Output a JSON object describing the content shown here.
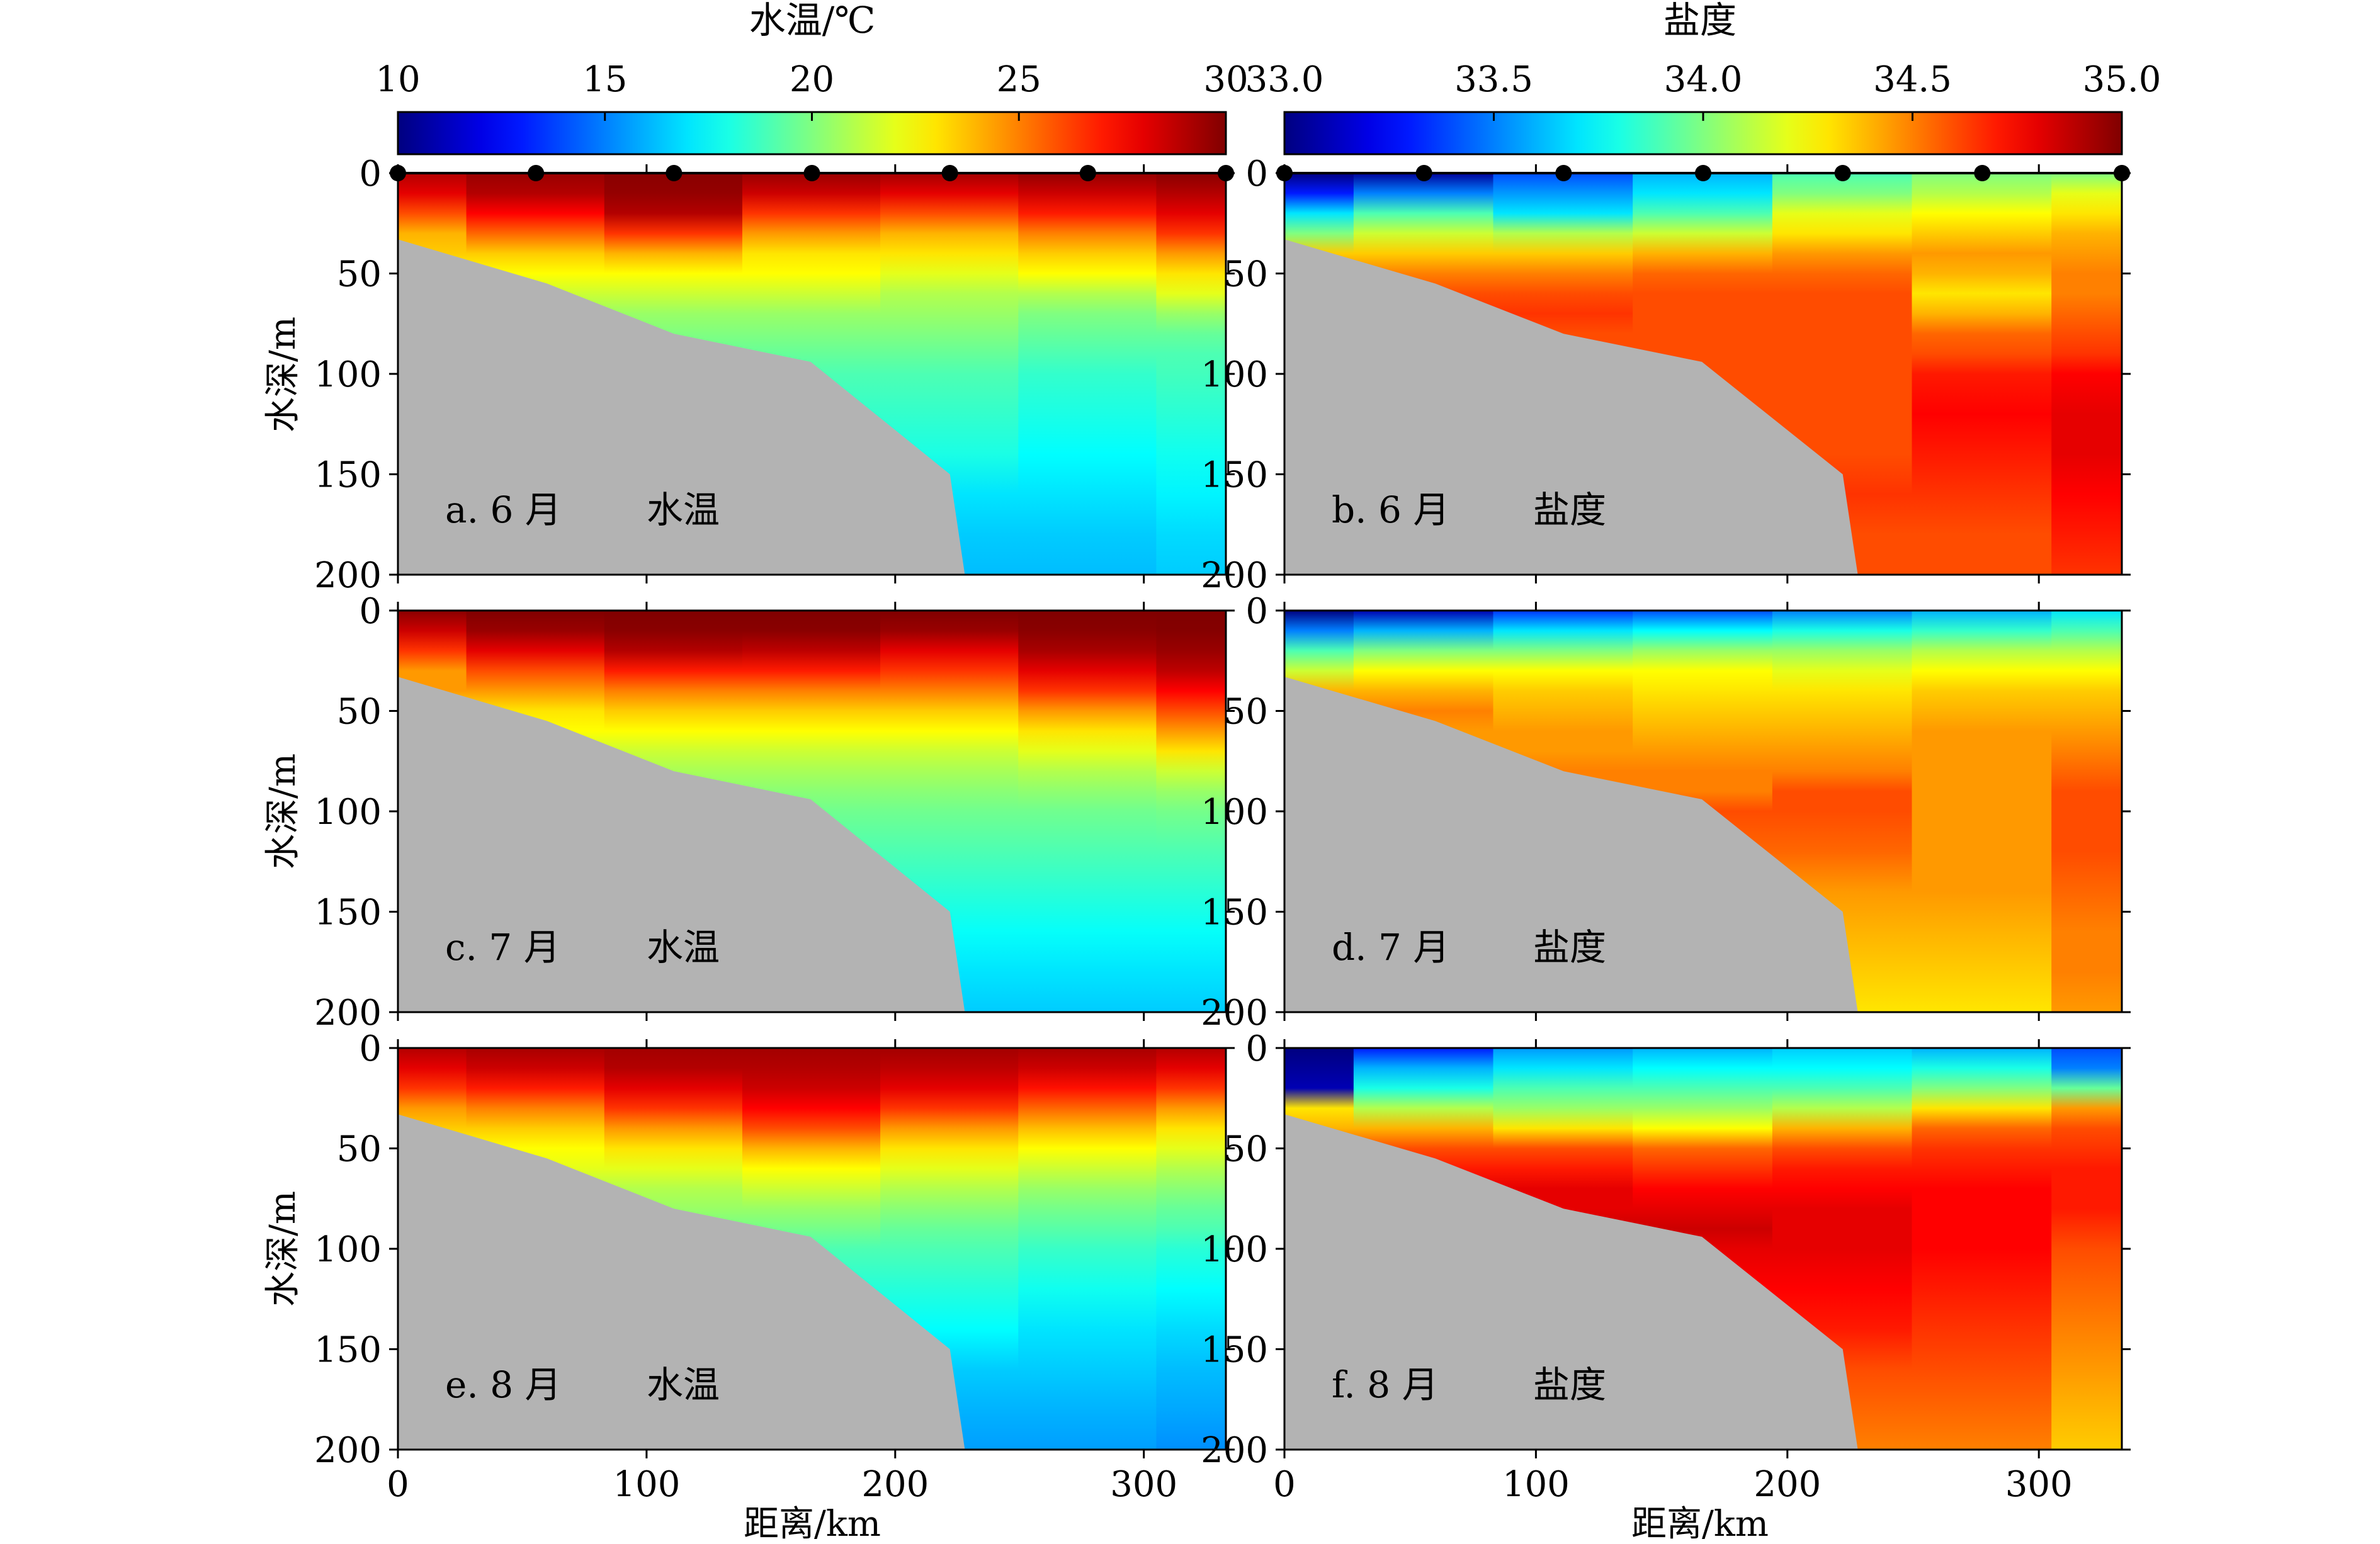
{
  "colorbars": [
    {
      "title": "水温/℃",
      "ticks": [
        "10",
        "15",
        "20",
        "25",
        "30"
      ],
      "range": [
        10,
        30
      ]
    },
    {
      "title": "盐度",
      "ticks": [
        "33.0",
        "33.5",
        "34.0",
        "34.5",
        "35.0"
      ],
      "range": [
        33.0,
        35.0
      ]
    }
  ],
  "axes": {
    "ylabel": "水深/m",
    "xlabel": "距离/km",
    "yticks": [
      "0",
      "50",
      "100",
      "150",
      "200"
    ],
    "xticks": [
      "0",
      "100",
      "200",
      "300"
    ],
    "xlim": [
      0,
      333
    ],
    "ylim": [
      0,
      200
    ]
  },
  "stations_km": [
    0,
    55.5,
    111,
    166.5,
    222,
    277.5,
    333
  ],
  "panels": [
    {
      "label": "a. 6 月",
      "var": "水温"
    },
    {
      "label": "b. 6 月",
      "var": "盐度"
    },
    {
      "label": "c. 7 月",
      "var": "水温"
    },
    {
      "label": "d. 7 月",
      "var": "盐度"
    },
    {
      "label": "e. 8 月",
      "var": "水温"
    },
    {
      "label": "f. 8 月",
      "var": "盐度"
    }
  ],
  "chart_data": [
    {
      "type": "heatmap",
      "title": "a. 6 月 水温",
      "x_km": [
        0,
        55.5,
        111,
        166.5,
        222,
        277.5,
        333
      ],
      "depth_m": [
        0,
        10,
        20,
        30,
        40,
        50,
        60,
        70,
        80,
        90,
        100,
        120,
        140,
        160,
        180,
        200
      ],
      "values": [
        [
          29.0,
          29.5,
          29.8,
          29.5,
          29.3,
          29.6,
          29.8
        ],
        [
          28.0,
          29.0,
          29.6,
          28.5,
          28.0,
          28.5,
          29.0
        ],
        [
          26.0,
          27.5,
          29.0,
          26.5,
          26.0,
          27.0,
          28.0
        ],
        [
          24.0,
          25.5,
          26.5,
          24.5,
          24.0,
          25.0,
          26.5
        ],
        [
          null,
          23.5,
          24.0,
          23.0,
          23.0,
          23.5,
          24.5
        ],
        [
          null,
          22.5,
          22.5,
          22.5,
          22.0,
          22.5,
          23.0
        ],
        [
          null,
          null,
          21.5,
          21.5,
          21.0,
          21.0,
          22.0
        ],
        [
          null,
          null,
          20.5,
          20.5,
          20.5,
          20.0,
          20.5
        ],
        [
          null,
          null,
          null,
          20.0,
          20.0,
          19.5,
          19.5
        ],
        [
          null,
          null,
          null,
          19.5,
          19.5,
          19.0,
          19.0
        ],
        [
          null,
          null,
          null,
          null,
          19.0,
          18.5,
          18.8
        ],
        [
          null,
          null,
          null,
          null,
          18.5,
          18.0,
          18.3
        ],
        [
          null,
          null,
          null,
          null,
          18.0,
          17.5,
          17.8
        ],
        [
          null,
          null,
          null,
          null,
          null,
          17.0,
          17.3
        ],
        [
          null,
          null,
          null,
          null,
          null,
          16.5,
          16.8
        ],
        [
          null,
          null,
          null,
          null,
          null,
          16.2,
          16.5
        ]
      ]
    },
    {
      "type": "heatmap",
      "title": "b. 6 月 盐度",
      "x_km": [
        0,
        55.5,
        111,
        166.5,
        222,
        277.5,
        333
      ],
      "depth_m": [
        0,
        10,
        20,
        30,
        40,
        50,
        60,
        70,
        80,
        90,
        100,
        120,
        140,
        160,
        180,
        200
      ],
      "values": [
        [
          33.0,
          33.05,
          33.4,
          33.6,
          33.9,
          34.0,
          34.0
        ],
        [
          33.3,
          33.5,
          33.55,
          33.7,
          34.0,
          34.1,
          34.2
        ],
        [
          33.7,
          33.9,
          33.7,
          33.9,
          34.2,
          34.25,
          34.3
        ],
        [
          34.0,
          34.15,
          34.1,
          34.15,
          34.3,
          34.35,
          34.4
        ],
        [
          null,
          34.35,
          34.35,
          34.4,
          34.45,
          34.45,
          34.45
        ],
        [
          null,
          34.5,
          34.5,
          34.55,
          34.55,
          34.4,
          34.5
        ],
        [
          null,
          null,
          34.6,
          34.6,
          34.6,
          34.3,
          34.5
        ],
        [
          null,
          null,
          34.65,
          34.6,
          34.6,
          34.4,
          34.55
        ],
        [
          null,
          null,
          null,
          34.6,
          34.6,
          34.55,
          34.6
        ],
        [
          null,
          null,
          null,
          34.6,
          34.6,
          34.6,
          34.65
        ],
        [
          null,
          null,
          null,
          null,
          34.6,
          34.7,
          34.75
        ],
        [
          null,
          null,
          null,
          null,
          34.6,
          34.75,
          34.8
        ],
        [
          null,
          null,
          null,
          null,
          34.6,
          34.7,
          34.8
        ],
        [
          null,
          null,
          null,
          null,
          null,
          34.65,
          34.75
        ],
        [
          null,
          null,
          null,
          null,
          null,
          34.6,
          34.7
        ],
        [
          null,
          null,
          null,
          null,
          null,
          34.6,
          34.65
        ]
      ]
    },
    {
      "type": "heatmap",
      "title": "c. 7 月 水温",
      "x_km": [
        0,
        55.5,
        111,
        166.5,
        222,
        277.5,
        333
      ],
      "depth_m": [
        0,
        10,
        20,
        30,
        40,
        50,
        60,
        70,
        80,
        90,
        100,
        120,
        140,
        160,
        180,
        200
      ],
      "values": [
        [
          29.8,
          30.0,
          30.0,
          30.0,
          30.0,
          30.0,
          30.0
        ],
        [
          28.5,
          29.5,
          29.8,
          29.8,
          29.5,
          29.8,
          29.9
        ],
        [
          26.5,
          28.0,
          29.0,
          28.8,
          28.0,
          29.2,
          29.5
        ],
        [
          24.5,
          26.0,
          27.0,
          27.0,
          26.5,
          28.0,
          28.8
        ],
        [
          null,
          24.5,
          25.0,
          25.0,
          25.0,
          26.5,
          27.5
        ],
        [
          null,
          23.0,
          23.5,
          23.5,
          23.5,
          24.5,
          26.0
        ],
        [
          null,
          null,
          22.5,
          22.5,
          22.5,
          23.0,
          24.5
        ],
        [
          null,
          null,
          21.5,
          21.5,
          21.5,
          22.0,
          23.0
        ],
        [
          null,
          null,
          null,
          20.8,
          20.8,
          21.0,
          21.5
        ],
        [
          null,
          null,
          null,
          20.2,
          20.2,
          20.3,
          20.5
        ],
        [
          null,
          null,
          null,
          null,
          19.7,
          19.7,
          19.8
        ],
        [
          null,
          null,
          null,
          null,
          19.0,
          19.0,
          19.0
        ],
        [
          null,
          null,
          null,
          null,
          18.3,
          18.3,
          18.3
        ],
        [
          null,
          null,
          null,
          null,
          null,
          17.6,
          17.6
        ],
        [
          null,
          null,
          null,
          null,
          null,
          17.0,
          17.0
        ],
        [
          null,
          null,
          null,
          null,
          null,
          16.5,
          16.5
        ]
      ]
    },
    {
      "type": "heatmap",
      "title": "d. 7 月 盐度",
      "x_km": [
        0,
        55.5,
        111,
        166.5,
        222,
        277.5,
        333
      ],
      "depth_m": [
        0,
        10,
        20,
        30,
        40,
        50,
        60,
        70,
        80,
        90,
        100,
        120,
        140,
        160,
        180,
        200
      ],
      "values": [
        [
          33.0,
          33.1,
          33.35,
          33.4,
          33.5,
          33.6,
          33.7
        ],
        [
          33.5,
          33.6,
          33.7,
          33.75,
          33.8,
          33.85,
          33.9
        ],
        [
          33.9,
          34.0,
          34.0,
          34.05,
          34.05,
          34.1,
          34.1
        ],
        [
          34.15,
          34.25,
          34.25,
          34.25,
          34.2,
          34.25,
          34.25
        ],
        [
          null,
          34.4,
          34.35,
          34.3,
          34.3,
          34.35,
          34.35
        ],
        [
          null,
          34.5,
          34.4,
          34.35,
          34.35,
          34.4,
          34.4
        ],
        [
          null,
          null,
          34.45,
          34.4,
          34.4,
          34.45,
          34.45
        ],
        [
          null,
          null,
          34.45,
          34.45,
          34.45,
          34.45,
          34.5
        ],
        [
          null,
          null,
          null,
          34.5,
          34.5,
          34.45,
          34.55
        ],
        [
          null,
          null,
          null,
          34.5,
          34.6,
          34.45,
          34.6
        ],
        [
          null,
          null,
          null,
          null,
          34.6,
          34.45,
          34.6
        ],
        [
          null,
          null,
          null,
          null,
          34.55,
          34.45,
          34.6
        ],
        [
          null,
          null,
          null,
          null,
          34.45,
          34.45,
          34.55
        ],
        [
          null,
          null,
          null,
          null,
          null,
          34.4,
          34.5
        ],
        [
          null,
          null,
          null,
          null,
          null,
          34.35,
          34.5
        ],
        [
          null,
          null,
          null,
          null,
          null,
          34.3,
          34.45
        ]
      ]
    },
    {
      "type": "heatmap",
      "title": "e. 8 月 水温",
      "x_km": [
        0,
        55.5,
        111,
        166.5,
        222,
        277.5,
        333
      ],
      "depth_m": [
        0,
        10,
        20,
        30,
        40,
        50,
        60,
        70,
        80,
        90,
        100,
        120,
        140,
        160,
        180,
        200
      ],
      "values": [
        [
          29.0,
          29.2,
          29.3,
          29.3,
          29.3,
          29.2,
          29.0
        ],
        [
          28.0,
          28.5,
          29.0,
          29.0,
          28.8,
          28.5,
          28.0
        ],
        [
          26.5,
          27.0,
          28.0,
          28.5,
          28.0,
          27.2,
          26.5
        ],
        [
          24.5,
          25.0,
          26.5,
          27.5,
          26.5,
          25.5,
          24.5
        ],
        [
          null,
          23.5,
          24.5,
          26.0,
          24.5,
          23.8,
          23.0
        ],
        [
          null,
          22.5,
          23.0,
          24.0,
          23.0,
          22.5,
          22.0
        ],
        [
          null,
          null,
          22.0,
          22.5,
          22.0,
          21.5,
          21.0
        ],
        [
          null,
          null,
          21.0,
          21.5,
          21.0,
          20.5,
          20.2
        ],
        [
          null,
          null,
          null,
          20.5,
          20.2,
          19.8,
          19.5
        ],
        [
          null,
          null,
          null,
          19.8,
          19.5,
          19.2,
          19.0
        ],
        [
          null,
          null,
          null,
          null,
          19.0,
          18.6,
          18.3
        ],
        [
          null,
          null,
          null,
          null,
          18.2,
          17.8,
          17.5
        ],
        [
          null,
          null,
          null,
          null,
          17.5,
          17.0,
          16.8
        ],
        [
          null,
          null,
          null,
          null,
          null,
          16.5,
          16.2
        ],
        [
          null,
          null,
          null,
          null,
          null,
          16.0,
          15.8
        ],
        [
          null,
          null,
          null,
          null,
          null,
          15.6,
          15.3
        ]
      ]
    },
    {
      "type": "heatmap",
      "title": "f. 8 月 盐度",
      "x_km": [
        0,
        55.5,
        111,
        166.5,
        222,
        277.5,
        333
      ],
      "depth_m": [
        0,
        10,
        20,
        30,
        40,
        50,
        60,
        70,
        80,
        90,
        100,
        120,
        140,
        160,
        180,
        200
      ],
      "values": [
        [
          33.0,
          33.3,
          33.55,
          33.6,
          33.65,
          33.6,
          33.4
        ],
        [
          33.05,
          33.6,
          33.7,
          33.75,
          33.75,
          33.8,
          33.5
        ],
        [
          33.1,
          33.8,
          33.9,
          33.9,
          33.9,
          34.0,
          33.95
        ],
        [
          34.3,
          34.1,
          34.05,
          34.05,
          34.1,
          34.3,
          34.45
        ],
        [
          null,
          34.4,
          34.3,
          34.25,
          34.4,
          34.55,
          34.6
        ],
        [
          null,
          34.6,
          34.6,
          34.55,
          34.6,
          34.65,
          34.65
        ],
        [
          null,
          null,
          34.7,
          34.65,
          34.7,
          34.7,
          34.7
        ],
        [
          null,
          null,
          34.8,
          34.75,
          34.75,
          34.75,
          34.7
        ],
        [
          null,
          null,
          null,
          34.8,
          34.8,
          34.75,
          34.7
        ],
        [
          null,
          null,
          null,
          34.85,
          34.8,
          34.75,
          34.65
        ],
        [
          null,
          null,
          null,
          null,
          34.8,
          34.75,
          34.6
        ],
        [
          null,
          null,
          null,
          null,
          34.75,
          34.7,
          34.55
        ],
        [
          null,
          null,
          null,
          null,
          34.7,
          34.65,
          34.5
        ],
        [
          null,
          null,
          null,
          null,
          null,
          34.6,
          34.45
        ],
        [
          null,
          null,
          null,
          null,
          null,
          34.55,
          34.4
        ],
        [
          null,
          null,
          null,
          null,
          null,
          34.5,
          34.35
        ]
      ]
    }
  ],
  "bathymetry": {
    "x_km": [
      0,
      60,
      111,
      166,
      222,
      228,
      333
    ],
    "depth_m": [
      33,
      55,
      80,
      94,
      150,
      200,
      200
    ]
  }
}
